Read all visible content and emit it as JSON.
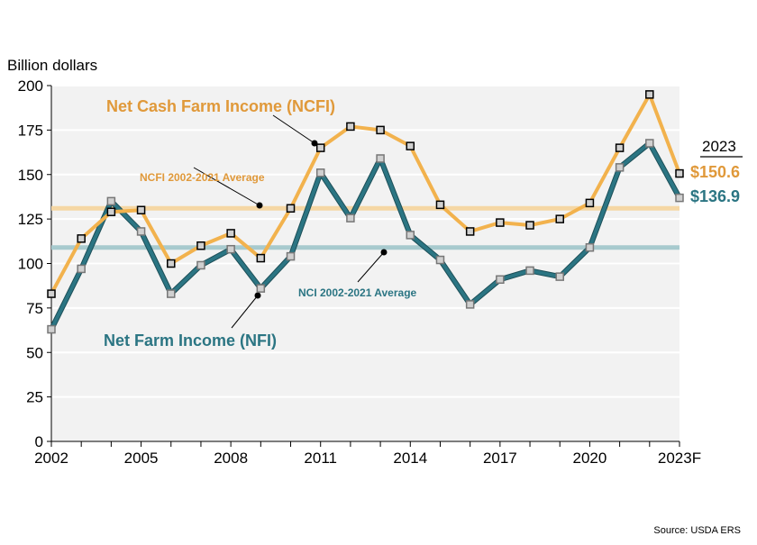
{
  "chart_data": {
    "type": "line",
    "ylabel": "Billion dollars",
    "ylim": [
      0,
      200
    ],
    "yticks": [
      0,
      25,
      50,
      75,
      100,
      125,
      150,
      175,
      200
    ],
    "x": [
      2002,
      2003,
      2004,
      2005,
      2006,
      2007,
      2008,
      2009,
      2010,
      2011,
      2012,
      2013,
      2014,
      2015,
      2016,
      2017,
      2018,
      2019,
      2020,
      2021,
      2022,
      2023
    ],
    "xtick_labels": [
      "2002",
      "2005",
      "2008",
      "2011",
      "2014",
      "2017",
      "2020",
      "2023F"
    ],
    "xtick_values": [
      2002,
      2005,
      2008,
      2011,
      2014,
      2017,
      2020,
      2023
    ],
    "grid": "horizontal",
    "series": [
      {
        "name": "Net Cash Farm Income (NCFI)",
        "color": "#f2b24d",
        "values": [
          83,
          114,
          129,
          130,
          100,
          110,
          117,
          103,
          131,
          165,
          177,
          175,
          166,
          133,
          118,
          123,
          121.5,
          125,
          134,
          165,
          195,
          150.6
        ]
      },
      {
        "name": "Net Farm Income (NFI)",
        "color": "#2b7583",
        "values": [
          63,
          97,
          135,
          118,
          83,
          99,
          108,
          86,
          104,
          151,
          125.5,
          159,
          116,
          102,
          77,
          91,
          96,
          92.6,
          109,
          154,
          167.6,
          136.9
        ]
      }
    ],
    "reference_lines": [
      {
        "label": "NCFI 2002-2021 Average",
        "value": 131,
        "color": "#f5d7a4"
      },
      {
        "label": "NCI 2002-2021 Average",
        "value": 109,
        "color": "#a7cace"
      }
    ],
    "annotations": {
      "year_header": "2023",
      "ncfi_2023": "$150.6",
      "nfi_2023": "$136.9"
    },
    "source": "Source: USDA ERS"
  }
}
